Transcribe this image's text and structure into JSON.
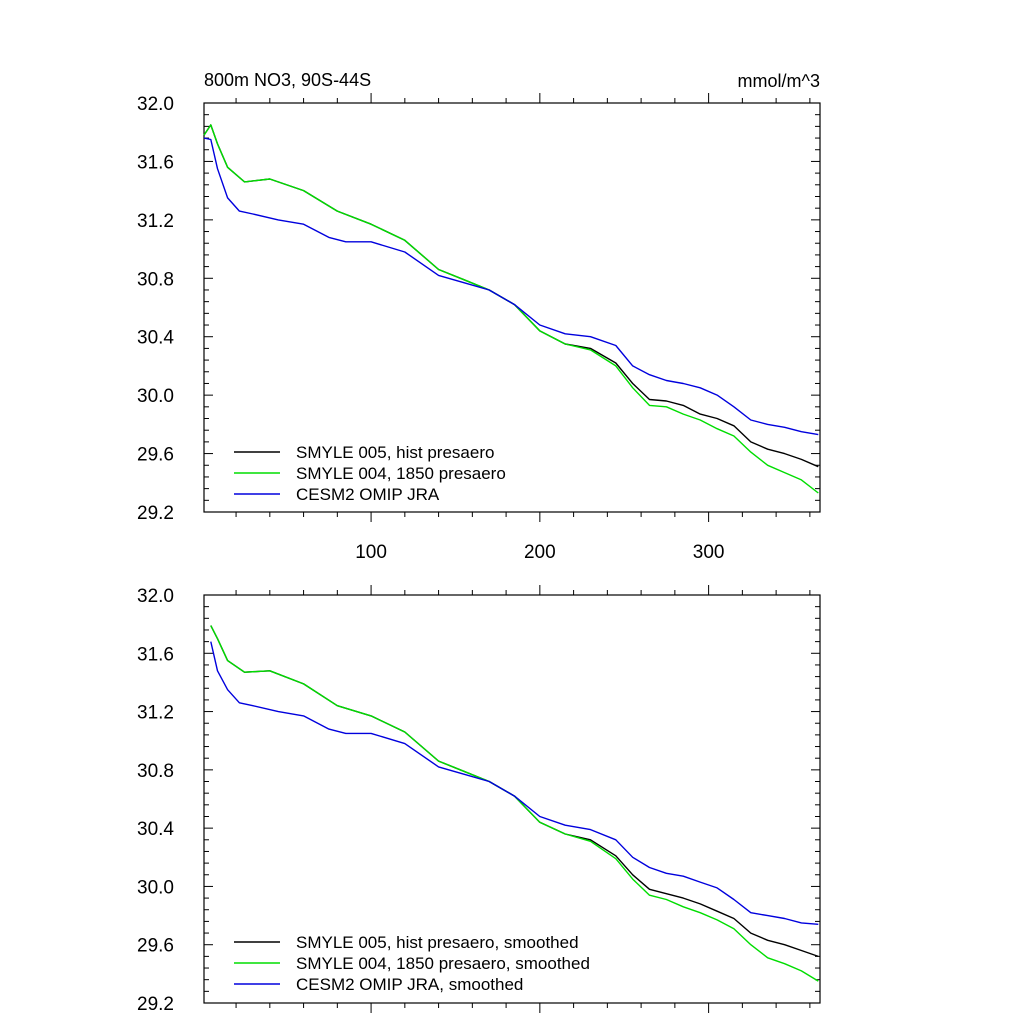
{
  "title_left": "800m NO3, 90S-44S",
  "title_right": "mmol/m^3",
  "colors": {
    "black": "#000000",
    "green": "#00dd00",
    "blue": "#0000dd"
  },
  "chart_data": [
    {
      "type": "line",
      "title": "800m NO3, 90S-44S",
      "units": "mmol/m^3",
      "xlim": [
        1,
        366
      ],
      "ylim": [
        29.2,
        32.0
      ],
      "xticks": [
        100,
        200,
        300
      ],
      "xtick_labels": [
        "100",
        "200",
        "300"
      ],
      "yticks": [
        29.2,
        29.6,
        30.0,
        30.4,
        30.8,
        31.2,
        31.6,
        32.0
      ],
      "ytick_labels": [
        "29.2",
        "29.6",
        "30.0",
        "30.4",
        "30.8",
        "31.2",
        "31.6",
        "32.0"
      ],
      "legend_position": "bottom-left",
      "series": [
        {
          "name": "SMYLE 005, hist presaero",
          "color": "black",
          "x": [
            1,
            5,
            9,
            15,
            25,
            40,
            60,
            80,
            100,
            120,
            140,
            155,
            170,
            185,
            200,
            215,
            230,
            245,
            255,
            265,
            275,
            285,
            295,
            305,
            315,
            325,
            335,
            345,
            355,
            365
          ],
          "y": [
            31.78,
            31.85,
            31.72,
            31.56,
            31.46,
            31.48,
            31.4,
            31.26,
            31.17,
            31.06,
            30.86,
            30.79,
            30.72,
            30.62,
            30.44,
            30.35,
            30.32,
            30.22,
            30.08,
            29.97,
            29.96,
            29.93,
            29.87,
            29.84,
            29.79,
            29.68,
            29.63,
            29.6,
            29.56,
            29.51
          ]
        },
        {
          "name": "SMYLE 004, 1850 presaero",
          "color": "green",
          "x": [
            1,
            5,
            9,
            15,
            25,
            40,
            60,
            80,
            100,
            120,
            140,
            155,
            170,
            185,
            200,
            215,
            230,
            245,
            255,
            265,
            275,
            285,
            295,
            305,
            315,
            325,
            335,
            345,
            355,
            365
          ],
          "y": [
            31.78,
            31.85,
            31.72,
            31.56,
            31.46,
            31.48,
            31.4,
            31.26,
            31.17,
            31.06,
            30.86,
            30.79,
            30.72,
            30.62,
            30.44,
            30.35,
            30.31,
            30.2,
            30.05,
            29.93,
            29.92,
            29.87,
            29.83,
            29.77,
            29.72,
            29.61,
            29.52,
            29.47,
            29.42,
            29.33
          ]
        },
        {
          "name": "CESM2 OMIP JRA",
          "color": "blue",
          "x": [
            1,
            5,
            9,
            15,
            22,
            30,
            45,
            60,
            75,
            85,
            100,
            120,
            140,
            155,
            170,
            185,
            200,
            215,
            230,
            245,
            255,
            265,
            275,
            285,
            295,
            305,
            315,
            325,
            335,
            345,
            355,
            365
          ],
          "y": [
            31.76,
            31.75,
            31.55,
            31.35,
            31.26,
            31.24,
            31.2,
            31.17,
            31.08,
            31.05,
            31.05,
            30.98,
            30.82,
            30.77,
            30.72,
            30.62,
            30.48,
            30.42,
            30.4,
            30.34,
            30.2,
            30.14,
            30.1,
            30.08,
            30.05,
            30.0,
            29.92,
            29.83,
            29.8,
            29.78,
            29.75,
            29.73
          ]
        }
      ]
    },
    {
      "type": "line",
      "title": "",
      "xlim": [
        1,
        366
      ],
      "ylim": [
        29.2,
        32.0
      ],
      "xticks": [
        100,
        200,
        300
      ],
      "yticks": [
        29.2,
        29.6,
        30.0,
        30.4,
        30.8,
        31.2,
        31.6,
        32.0
      ],
      "ytick_labels": [
        "29.2",
        "29.6",
        "30.0",
        "30.4",
        "30.8",
        "31.2",
        "31.6",
        "32.0"
      ],
      "legend_position": "bottom-left",
      "series": [
        {
          "name": "SMYLE 005, hist presaero, smoothed",
          "color": "black",
          "x": [
            5,
            9,
            15,
            25,
            40,
            60,
            80,
            100,
            120,
            140,
            155,
            170,
            185,
            200,
            215,
            230,
            245,
            255,
            265,
            275,
            285,
            295,
            305,
            315,
            325,
            335,
            345,
            355,
            365
          ],
          "y": [
            31.79,
            31.7,
            31.55,
            31.47,
            31.48,
            31.39,
            31.24,
            31.17,
            31.06,
            30.86,
            30.79,
            30.72,
            30.62,
            30.44,
            30.36,
            30.32,
            30.21,
            30.08,
            29.98,
            29.95,
            29.92,
            29.88,
            29.83,
            29.78,
            29.68,
            29.63,
            29.6,
            29.56,
            29.52
          ]
        },
        {
          "name": "SMYLE 004, 1850 presaero, smoothed",
          "color": "green",
          "x": [
            5,
            9,
            15,
            25,
            40,
            60,
            80,
            100,
            120,
            140,
            155,
            170,
            185,
            200,
            215,
            230,
            245,
            255,
            265,
            275,
            285,
            295,
            305,
            315,
            325,
            335,
            345,
            355,
            365
          ],
          "y": [
            31.79,
            31.7,
            31.55,
            31.47,
            31.48,
            31.39,
            31.24,
            31.17,
            31.06,
            30.86,
            30.79,
            30.72,
            30.62,
            30.44,
            30.36,
            30.31,
            30.19,
            30.05,
            29.94,
            29.91,
            29.86,
            29.82,
            29.77,
            29.71,
            29.6,
            29.51,
            29.47,
            29.42,
            29.35
          ]
        },
        {
          "name": "CESM2 OMIP JRA, smoothed",
          "color": "blue",
          "x": [
            5,
            9,
            15,
            22,
            30,
            45,
            60,
            75,
            85,
            100,
            120,
            140,
            155,
            170,
            185,
            200,
            215,
            230,
            245,
            255,
            265,
            275,
            285,
            295,
            305,
            315,
            325,
            335,
            345,
            355,
            365
          ],
          "y": [
            31.68,
            31.48,
            31.35,
            31.26,
            31.24,
            31.2,
            31.17,
            31.08,
            31.05,
            31.05,
            30.98,
            30.82,
            30.77,
            30.72,
            30.62,
            30.48,
            30.42,
            30.39,
            30.32,
            30.2,
            30.13,
            30.09,
            30.07,
            30.03,
            29.99,
            29.91,
            29.82,
            29.8,
            29.78,
            29.75,
            29.74
          ]
        }
      ]
    }
  ]
}
